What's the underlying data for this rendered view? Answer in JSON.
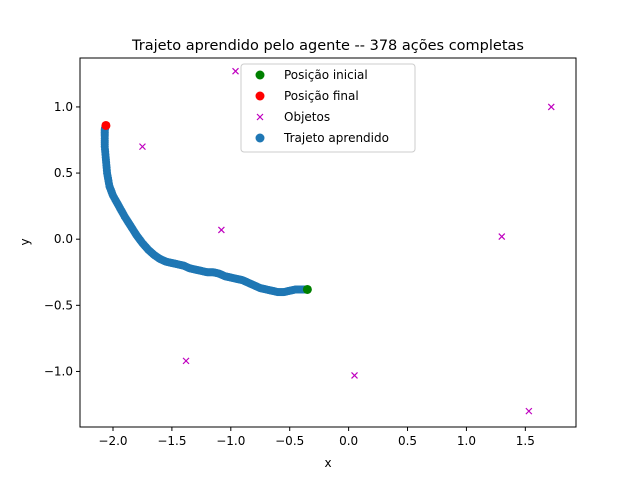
{
  "chart_data": {
    "type": "scatter",
    "title": "Trajeto aprendido pelo agente -- 378 ações completas",
    "xlabel": "x",
    "ylabel": "y",
    "xlim": [
      -2.28,
      1.93
    ],
    "ylim": [
      -1.42,
      1.37
    ],
    "xticks": [
      -2.0,
      -1.5,
      -1.0,
      -0.5,
      0.0,
      0.5,
      1.0,
      1.5
    ],
    "xtick_labels": [
      "−2.0",
      "−1.5",
      "−1.0",
      "−0.5",
      "0.0",
      "0.5",
      "1.0",
      "1.5"
    ],
    "yticks": [
      -1.0,
      -0.5,
      0.0,
      0.5,
      1.0
    ],
    "ytick_labels": [
      "−1.0",
      "−0.5",
      "0.0",
      "0.5",
      "1.0"
    ],
    "grid": false,
    "legend_position": "top-center",
    "series": [
      {
        "name": "Posição inicial",
        "marker": "circle",
        "color": "#008000",
        "points": [
          [
            -0.35,
            -0.38
          ]
        ]
      },
      {
        "name": "Posição final",
        "marker": "circle",
        "color": "#ff0000",
        "points": [
          [
            -2.06,
            0.86
          ]
        ]
      },
      {
        "name": "Objetos",
        "marker": "x",
        "color": "#bf00bf",
        "points": [
          [
            -0.96,
            1.27
          ],
          [
            1.72,
            1.0
          ],
          [
            -1.75,
            0.7
          ],
          [
            -1.08,
            0.07
          ],
          [
            1.3,
            0.02
          ],
          [
            -1.38,
            -0.92
          ],
          [
            0.05,
            -1.03
          ],
          [
            1.53,
            -1.3
          ]
        ]
      },
      {
        "name": "Trajeto aprendido",
        "marker": "circle",
        "color": "#1f77b4",
        "points": [
          [
            -0.35,
            -0.38
          ],
          [
            -0.4,
            -0.38
          ],
          [
            -0.45,
            -0.38
          ],
          [
            -0.5,
            -0.39
          ],
          [
            -0.55,
            -0.4
          ],
          [
            -0.6,
            -0.4
          ],
          [
            -0.65,
            -0.39
          ],
          [
            -0.7,
            -0.38
          ],
          [
            -0.75,
            -0.37
          ],
          [
            -0.8,
            -0.35
          ],
          [
            -0.85,
            -0.33
          ],
          [
            -0.9,
            -0.31
          ],
          [
            -0.95,
            -0.3
          ],
          [
            -1.0,
            -0.29
          ],
          [
            -1.05,
            -0.28
          ],
          [
            -1.1,
            -0.26
          ],
          [
            -1.15,
            -0.25
          ],
          [
            -1.2,
            -0.25
          ],
          [
            -1.25,
            -0.24
          ],
          [
            -1.3,
            -0.23
          ],
          [
            -1.35,
            -0.22
          ],
          [
            -1.4,
            -0.2
          ],
          [
            -1.45,
            -0.19
          ],
          [
            -1.5,
            -0.18
          ],
          [
            -1.55,
            -0.17
          ],
          [
            -1.6,
            -0.15
          ],
          [
            -1.65,
            -0.12
          ],
          [
            -1.7,
            -0.08
          ],
          [
            -1.75,
            -0.03
          ],
          [
            -1.8,
            0.03
          ],
          [
            -1.85,
            0.1
          ],
          [
            -1.9,
            0.17
          ],
          [
            -1.95,
            0.25
          ],
          [
            -2.0,
            0.33
          ],
          [
            -2.03,
            0.4
          ],
          [
            -2.05,
            0.5
          ],
          [
            -2.06,
            0.6
          ],
          [
            -2.07,
            0.7
          ],
          [
            -2.07,
            0.78
          ],
          [
            -2.07,
            0.83
          ],
          [
            -2.06,
            0.86
          ]
        ]
      }
    ]
  }
}
